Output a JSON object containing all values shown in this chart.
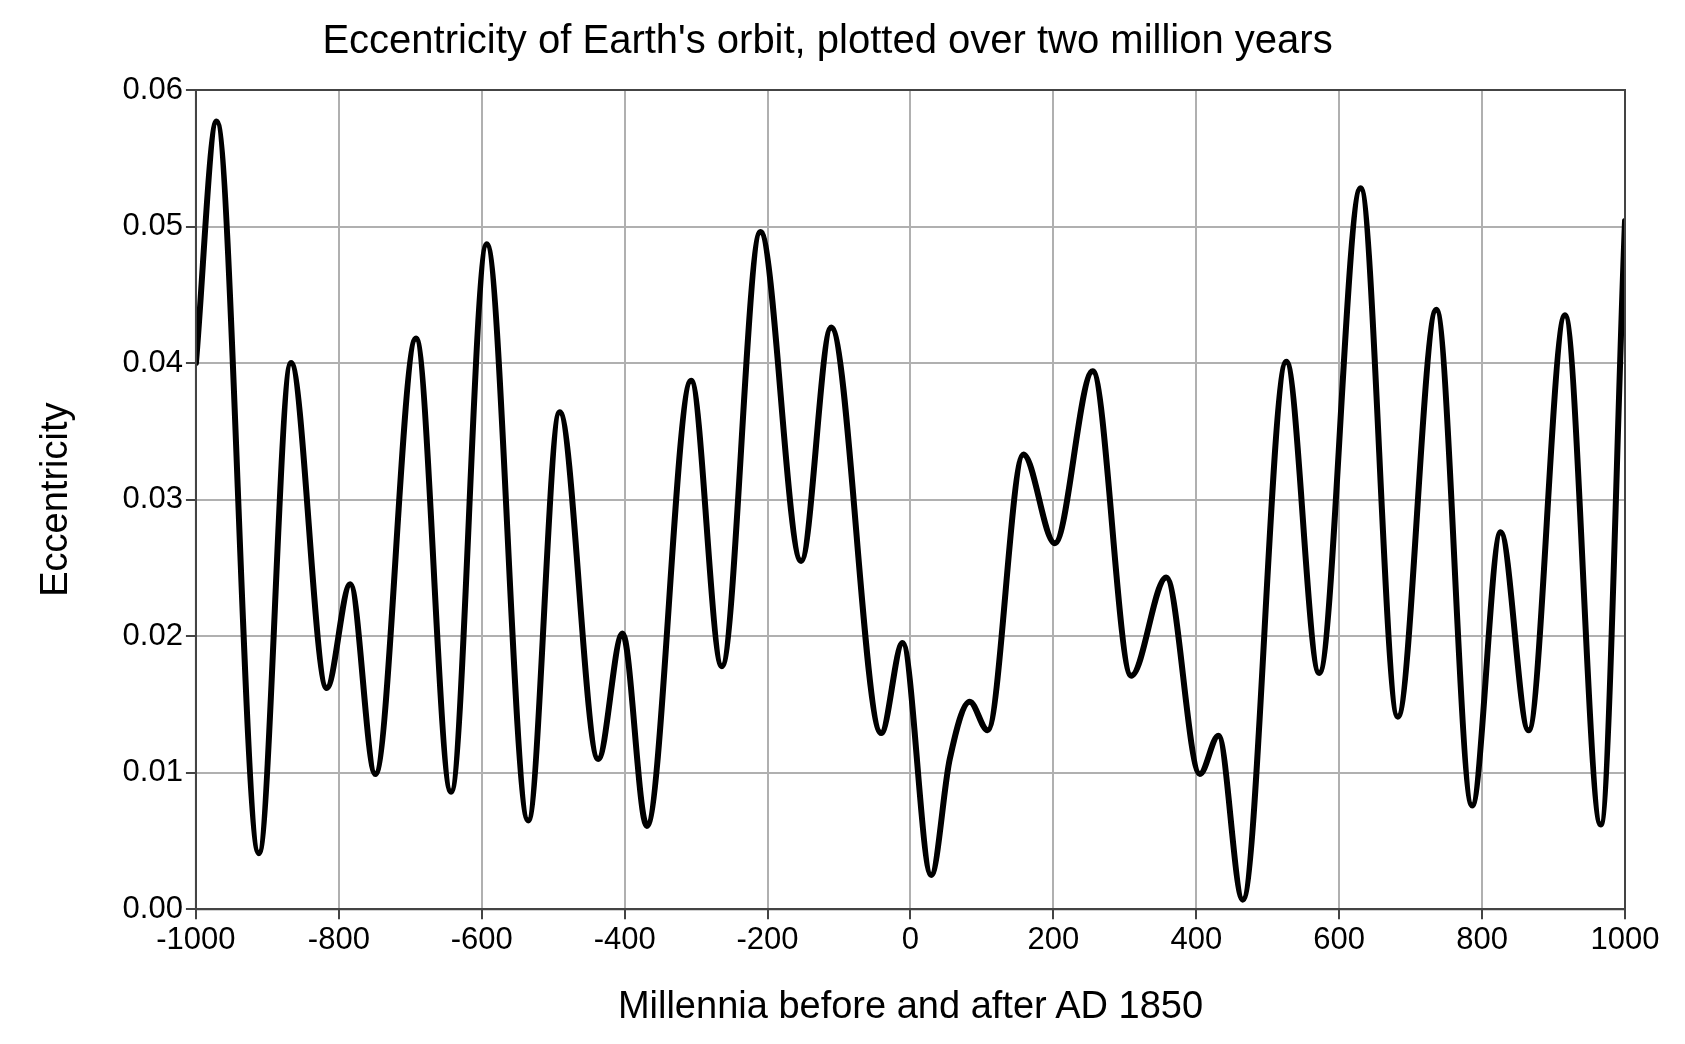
{
  "chart_data": {
    "type": "line",
    "title": "Eccentricity of Earth's orbit, plotted over two million years",
    "xlabel": "Millennia before and after AD 1850",
    "ylabel": "Eccentricity",
    "x": [
      -1000,
      -971,
      -912,
      -867,
      -817,
      -784,
      -749,
      -692,
      -643,
      -593,
      -535,
      -491,
      -437,
      -403,
      -369,
      -307,
      -264,
      -210,
      -153,
      -111,
      -41,
      -11,
      29,
      55,
      83,
      108,
      158,
      202,
      255,
      309,
      358,
      405,
      431,
      465,
      526,
      572,
      630,
      682,
      736,
      786,
      826,
      865,
      916,
      966,
      1000
    ],
    "series": [
      {
        "color": "#000000",
        "values": [
          0.04,
          0.0577,
          0.0041,
          0.04,
          0.0162,
          0.0238,
          0.0099,
          0.0418,
          0.0086,
          0.0487,
          0.0065,
          0.0364,
          0.011,
          0.0202,
          0.0061,
          0.0387,
          0.0178,
          0.0496,
          0.0255,
          0.0426,
          0.0129,
          0.0195,
          0.0025,
          0.011,
          0.0152,
          0.0131,
          0.0333,
          0.0268,
          0.0394,
          0.0171,
          0.0243,
          0.0099,
          0.0127,
          0.0007,
          0.0401,
          0.0173,
          0.0528,
          0.0141,
          0.0439,
          0.0076,
          0.0276,
          0.0131,
          0.0435,
          0.0062,
          0.0504
        ]
      }
    ],
    "xlim": [
      -1000,
      1000
    ],
    "xticks": [
      -1000,
      -800,
      -600,
      -400,
      -200,
      0,
      200,
      400,
      600,
      800,
      1000
    ],
    "ylim": [
      0,
      0.06
    ],
    "yticks": [
      {
        "value": 0,
        "label": "0.00"
      },
      {
        "value": 0.01,
        "label": "0.01"
      },
      {
        "value": 0.02,
        "label": "0.02"
      },
      {
        "value": 0.03,
        "label": "0.03"
      },
      {
        "value": 0.04,
        "label": "0.04"
      },
      {
        "value": 0.05,
        "label": "0.05"
      },
      {
        "value": 0.06,
        "label": "0.06"
      }
    ],
    "grid": true,
    "legend": false,
    "marker": "none",
    "line_style": "solid"
  }
}
